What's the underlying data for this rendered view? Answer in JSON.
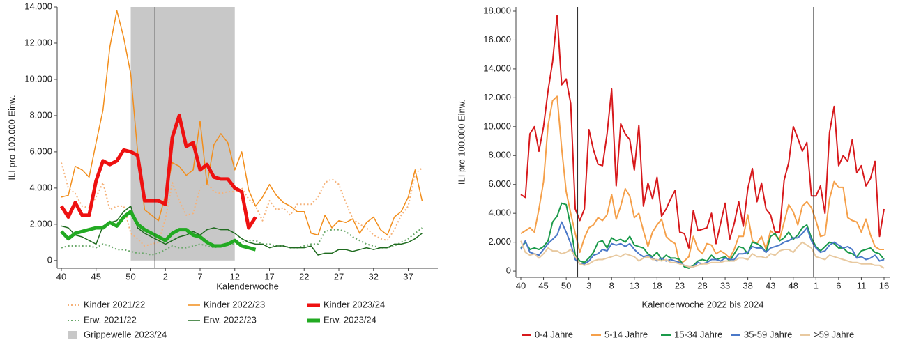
{
  "chart_data": [
    {
      "type": "line",
      "ylabel": "ILI pro 100.000 Einw.",
      "xlabel": "Kalenderwoche",
      "categories": [
        "40",
        null,
        null,
        null,
        null,
        "45",
        null,
        null,
        null,
        null,
        "50",
        null,
        null,
        null,
        null,
        "2",
        null,
        null,
        null,
        null,
        "7",
        null,
        null,
        null,
        null,
        "12",
        null,
        null,
        null,
        null,
        "17",
        null,
        null,
        null,
        null,
        "22",
        null,
        null,
        null,
        null,
        "27",
        null,
        null,
        null,
        null,
        "32",
        null,
        null,
        null,
        null,
        "37",
        null,
        null
      ],
      "ylim": [
        -430,
        14000
      ],
      "yticks": [
        0,
        {
          "value": 2000,
          "label": "2.000"
        },
        {
          "value": 4000,
          "label": "4.000"
        },
        {
          "value": 6000,
          "label": "6.000"
        },
        {
          "value": 8000,
          "label": "8.000"
        },
        {
          "value": 10000,
          "label": "10.000"
        },
        {
          "value": 12000,
          "label": "12.000"
        },
        {
          "value": 14000,
          "label": "14.000"
        }
      ],
      "band": {
        "name": "Grippewelle 2023/24",
        "from": "50",
        "to": "12",
        "color": "#c8c8c8"
      },
      "series": [
        {
          "name": "Kinder 2021/22",
          "color": "#f5b27a",
          "linestyle": "dotted",
          "linewidth": 2,
          "values": [
            5400,
            4000,
            3700,
            3000,
            2900,
            3500,
            4300,
            2800,
            3000,
            3000,
            1500,
            1200,
            800,
            900,
            1000,
            2300,
            4300,
            3300,
            2500,
            2600,
            4000,
            4300,
            3800,
            3700,
            3800,
            3800,
            4000,
            3400,
            3000,
            2200,
            3300,
            2800,
            2900,
            2500,
            3100,
            3100,
            3100,
            3500,
            4300,
            4500,
            4200,
            3200,
            2300,
            2000,
            1800,
            1400,
            1200,
            1100,
            1700,
            2500,
            3000,
            4800,
            5100
          ]
        },
        {
          "name": "Kinder 2022/23",
          "color": "#f28e1c",
          "linestyle": "solid",
          "linewidth": 1.5,
          "values": [
            3500,
            3600,
            5200,
            5000,
            4600,
            6500,
            8300,
            11800,
            13800,
            12300,
            10300,
            6000,
            2800,
            2500,
            2200,
            3600,
            5400,
            5200,
            4700,
            5000,
            7700,
            4200,
            6400,
            7000,
            6500,
            5000,
            6000,
            3900,
            3000,
            3500,
            4200,
            3600,
            3200,
            3000,
            2700,
            2700,
            1500,
            1400,
            2500,
            1800,
            2200,
            2100,
            2300,
            1500,
            2100,
            2400,
            1700,
            1400,
            2400,
            2700,
            3500,
            5000,
            3300
          ]
        },
        {
          "name": "Kinder 2023/24",
          "color": "#ee1111",
          "linestyle": "solid",
          "linewidth": 5,
          "values": [
            3000,
            2400,
            3200,
            2500,
            2500,
            4400,
            5500,
            5300,
            5500,
            6100,
            6000,
            5800,
            3300,
            3300,
            3300,
            3100,
            6800,
            8000,
            6300,
            6500,
            5000,
            5300,
            4600,
            4500,
            4500,
            4000,
            3800,
            1800,
            2400,
            null,
            null,
            null,
            null,
            null,
            null,
            null,
            null,
            null,
            null,
            null,
            null,
            null,
            null,
            null,
            null,
            null,
            null,
            null,
            null,
            null,
            null,
            null,
            null
          ]
        },
        {
          "name": "Erw. 2021/22",
          "color": "#6aa86a",
          "linestyle": "dotted",
          "linewidth": 2,
          "values": [
            700,
            800,
            800,
            800,
            800,
            700,
            900,
            800,
            600,
            600,
            500,
            400,
            400,
            300,
            400,
            600,
            800,
            700,
            700,
            800,
            900,
            800,
            700,
            800,
            900,
            900,
            1000,
            1100,
            1100,
            900,
            900,
            800,
            800,
            700,
            700,
            800,
            900,
            900,
            1600,
            1700,
            1700,
            1600,
            1300,
            1100,
            900,
            800,
            700,
            700,
            800,
            1000,
            1200,
            1500,
            1800
          ]
        },
        {
          "name": "Erw. 2022/23",
          "color": "#1f6b1f",
          "linestyle": "solid",
          "linewidth": 1.5,
          "values": [
            1900,
            1800,
            1400,
            1300,
            1100,
            900,
            1900,
            2100,
            2200,
            2700,
            3000,
            1800,
            1500,
            1300,
            1100,
            900,
            1100,
            1300,
            1400,
            1600,
            1400,
            1700,
            1800,
            1700,
            1700,
            1500,
            1200,
            1000,
            900,
            900,
            700,
            800,
            800,
            700,
            700,
            700,
            800,
            300,
            400,
            400,
            600,
            600,
            500,
            600,
            700,
            600,
            700,
            700,
            900,
            900,
            1000,
            1200,
            1500
          ]
        },
        {
          "name": "Erw. 2023/24",
          "color": "#22aa22",
          "linestyle": "solid",
          "linewidth": 5,
          "values": [
            1600,
            1200,
            1500,
            1600,
            1700,
            1800,
            1800,
            2100,
            1900,
            2400,
            2700,
            2000,
            1700,
            1500,
            1300,
            1100,
            1500,
            1700,
            1700,
            1400,
            1300,
            1000,
            800,
            800,
            900,
            1100,
            800,
            700,
            600,
            null,
            null,
            null,
            null,
            null,
            null,
            null,
            null,
            null,
            null,
            null,
            null,
            null,
            null,
            null,
            null,
            null,
            null,
            null,
            null,
            null,
            null,
            null,
            null
          ]
        }
      ]
    },
    {
      "type": "line",
      "ylabel": "ILI pro 100.000 Einw.",
      "xlabel": "Kalenderwoche 2022 bis 2024",
      "categories": [
        "40",
        null,
        null,
        null,
        null,
        "45",
        null,
        null,
        null,
        null,
        "50",
        null,
        null,
        null,
        null,
        "3",
        null,
        null,
        null,
        null,
        "8",
        null,
        null,
        null,
        null,
        "13",
        null,
        null,
        null,
        null,
        "18",
        null,
        null,
        null,
        null,
        "23",
        null,
        null,
        null,
        null,
        "28",
        null,
        null,
        null,
        null,
        "33",
        null,
        null,
        null,
        null,
        "38",
        null,
        null,
        null,
        null,
        "43",
        null,
        null,
        null,
        null,
        "48",
        null,
        null,
        null,
        null,
        "1",
        null,
        null,
        null,
        null,
        "6",
        null,
        null,
        null,
        null,
        "11",
        null,
        null,
        null,
        null,
        "16"
      ],
      "ylim": [
        -430,
        18290
      ],
      "yticks": [
        0,
        {
          "value": 2000,
          "label": "2.000"
        },
        {
          "value": 4000,
          "label": "4.000"
        },
        {
          "value": 6000,
          "label": "6.000"
        },
        {
          "value": 8000,
          "label": "8.000"
        },
        {
          "value": 10000,
          "label": "10.000"
        },
        {
          "value": 12000,
          "label": "12.000"
        },
        {
          "value": 14000,
          "label": "14.000"
        },
        {
          "value": 16000,
          "label": "16.000"
        },
        {
          "value": 18000,
          "label": "18.000"
        }
      ],
      "series": [
        {
          "name": "0-4 Jahre",
          "color": "#d7191c",
          "linestyle": "solid",
          "linewidth": 2,
          "values": [
            5300,
            5100,
            9500,
            10000,
            8300,
            10000,
            12500,
            14500,
            17700,
            12900,
            13300,
            11600,
            4300,
            3500,
            4300,
            9800,
            8400,
            7400,
            7300,
            9500,
            12600,
            5900,
            10200,
            9500,
            9100,
            7000,
            10100,
            4500,
            6100,
            5000,
            6500,
            3800,
            4300,
            5000,
            5600,
            2700,
            2600,
            1600,
            4200,
            2800,
            2900,
            3000,
            4000,
            1900,
            3300,
            4700,
            2200,
            3300,
            4800,
            3100,
            5700,
            7100,
            4800,
            6100,
            4300,
            3900,
            2700,
            2700,
            6300,
            7500,
            10000,
            9200,
            8300,
            8900,
            5200,
            5200,
            5900,
            4000,
            9600,
            11400,
            7300,
            8000,
            7600,
            9100,
            6800,
            7300,
            5900,
            6400,
            7600,
            2400,
            4300
          ]
        },
        {
          "name": "5-14 Jahre",
          "color": "#f5a04a",
          "linestyle": "solid",
          "linewidth": 2,
          "values": [
            2600,
            2800,
            3000,
            2700,
            4300,
            6200,
            10100,
            11800,
            12100,
            8500,
            5500,
            4000,
            2600,
            1300,
            2300,
            3000,
            3200,
            3700,
            3500,
            3900,
            5300,
            3600,
            4500,
            5700,
            5200,
            3700,
            4000,
            2800,
            1700,
            2700,
            3200,
            3600,
            2400,
            2100,
            1900,
            500,
            700,
            1000,
            2400,
            1500,
            1200,
            1900,
            1800,
            1200,
            1400,
            1200,
            900,
            1500,
            2400,
            2400,
            3900,
            2100,
            1900,
            2400,
            1500,
            2800,
            2500,
            2200,
            3400,
            4600,
            4100,
            3200,
            4500,
            4800,
            4400,
            3500,
            2400,
            2500,
            5000,
            6200,
            5800,
            5800,
            3700,
            3500,
            3400,
            2700,
            3600,
            2500,
            1700,
            1500,
            1500
          ]
        },
        {
          "name": "15-34 Jahre",
          "color": "#1a9a4a",
          "linestyle": "solid",
          "linewidth": 2,
          "values": [
            1600,
            2000,
            1500,
            1600,
            1500,
            1700,
            2100,
            3400,
            3800,
            4700,
            4600,
            3100,
            1100,
            700,
            600,
            900,
            1300,
            2000,
            2100,
            1600,
            2300,
            2100,
            2200,
            2000,
            2400,
            1800,
            1700,
            1600,
            1200,
            1000,
            1300,
            800,
            1100,
            900,
            900,
            800,
            300,
            200,
            400,
            700,
            800,
            700,
            1100,
            800,
            900,
            1000,
            700,
            1200,
            1700,
            1600,
            1200,
            2000,
            1900,
            1700,
            1300,
            2400,
            2600,
            2100,
            2300,
            2700,
            2200,
            2500,
            3000,
            3200,
            2300,
            1700,
            1400,
            1700,
            2000,
            1900,
            1600,
            1600,
            1300,
            1200,
            1000,
            1400,
            1500,
            1600,
            1300,
            1200,
            800
          ]
        },
        {
          "name": "35-59 Jahre",
          "color": "#4a78c8",
          "linestyle": "solid",
          "linewidth": 2,
          "values": [
            1500,
            2100,
            1300,
            1200,
            1100,
            1500,
            1900,
            2200,
            2500,
            3400,
            2700,
            1900,
            800,
            500,
            500,
            700,
            1100,
            1200,
            1500,
            1400,
            1900,
            1800,
            1900,
            1700,
            1900,
            1500,
            1200,
            1000,
            1100,
            900,
            700,
            900,
            700,
            800,
            700,
            600,
            400,
            300,
            300,
            600,
            500,
            600,
            800,
            800,
            700,
            900,
            800,
            800,
            1200,
            1200,
            1300,
            1700,
            1600,
            1600,
            1300,
            1600,
            1700,
            1800,
            2000,
            2100,
            2300,
            2300,
            2600,
            3000,
            2100,
            1600,
            1300,
            1400,
            1800,
            2000,
            1800,
            1600,
            1700,
            1500,
            900,
            1000,
            800,
            900,
            1100,
            700,
            800
          ]
        },
        {
          "name": ">59 Jahre",
          "color": "#e8c9a0",
          "linestyle": "solid",
          "linewidth": 2,
          "values": [
            2100,
            1300,
            1100,
            1200,
            900,
            1200,
            1600,
            1400,
            1400,
            1200,
            1300,
            1500,
            1000,
            500,
            400,
            500,
            700,
            800,
            800,
            900,
            1000,
            1100,
            1000,
            1200,
            1100,
            1000,
            700,
            900,
            1000,
            800,
            800,
            700,
            800,
            600,
            600,
            500,
            400,
            300,
            300,
            400,
            500,
            500,
            600,
            600,
            600,
            700,
            700,
            700,
            900,
            900,
            800,
            1200,
            1000,
            1000,
            900,
            1200,
            1100,
            1400,
            1500,
            1500,
            1300,
            1700,
            2000,
            1800,
            1600,
            1000,
            900,
            800,
            1100,
            1000,
            900,
            800,
            700,
            600,
            600,
            500,
            500,
            500,
            400,
            400,
            200
          ]
        }
      ]
    }
  ]
}
